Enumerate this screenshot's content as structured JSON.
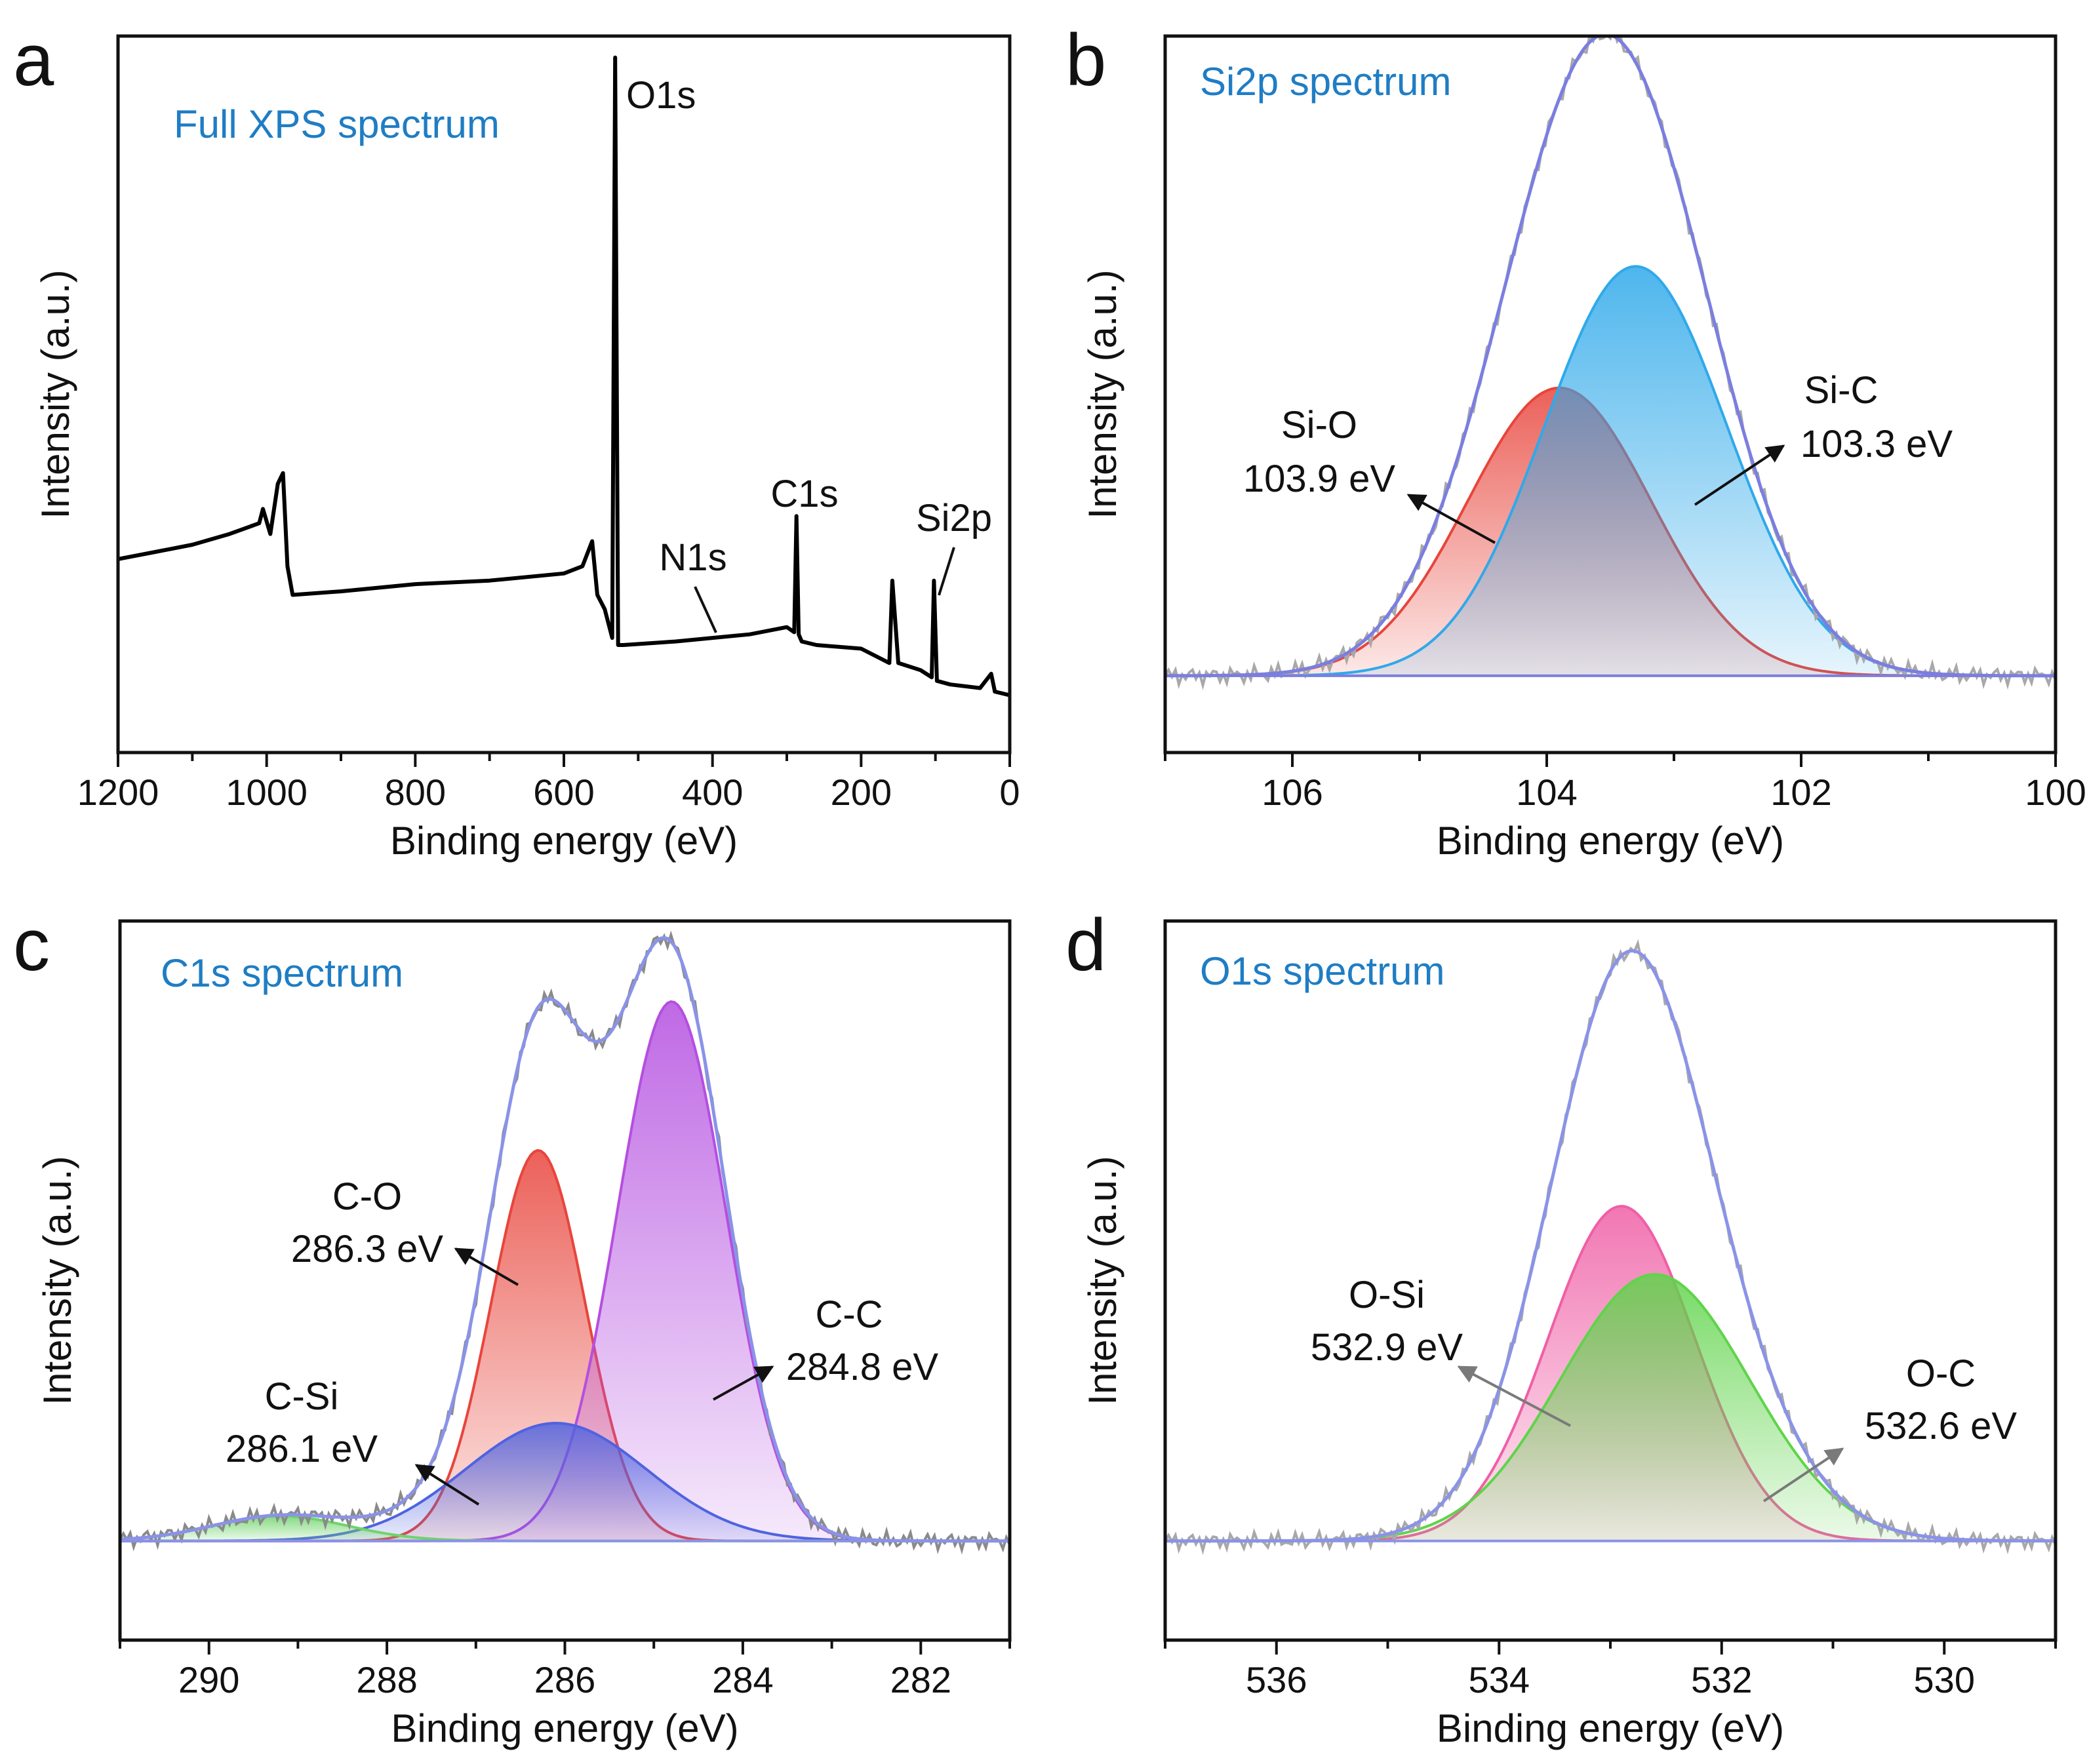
{
  "figure": {
    "panels": [
      {
        "letter": "a"
      },
      {
        "letter": "b"
      },
      {
        "letter": "c"
      },
      {
        "letter": "d"
      }
    ]
  },
  "chart_data": [
    {
      "type": "line",
      "panel": "a",
      "title": "Full XPS spectrum",
      "xlabel": "Binding energy (eV)",
      "ylabel": "Intensity (a.u.)",
      "xlim": [
        1200,
        0
      ],
      "ylim": [
        0,
        100
      ],
      "x_reversed": true,
      "xticks": [
        1200,
        1000,
        800,
        600,
        400,
        200,
        0
      ],
      "xtick_labels": [
        "1200",
        "1000",
        "800",
        "600",
        "400",
        "200",
        "0"
      ],
      "series": [
        {
          "name": "Survey",
          "color": "#000000",
          "x": [
            1200,
            1150,
            1100,
            1050,
            1010,
            1005,
            995,
            985,
            978,
            972,
            965,
            900,
            800,
            700,
            600,
            575,
            562,
            555,
            545,
            535,
            531,
            527,
            520,
            450,
            400,
            350,
            300,
            290,
            287,
            284,
            280,
            260,
            200,
            162,
            158,
            150,
            120,
            105,
            102,
            98,
            80,
            40,
            25,
            20,
            0
          ],
          "y": [
            27,
            28,
            29,
            30.5,
            32,
            34,
            30.5,
            37.5,
            39,
            26,
            22,
            22.5,
            23.5,
            24,
            25,
            26,
            29.5,
            22,
            20,
            16,
            97,
            15,
            15,
            15.5,
            16,
            16.5,
            17.5,
            16.8,
            33,
            16.5,
            15.5,
            15,
            14.5,
            12.5,
            24,
            12.5,
            11.5,
            10.5,
            24,
            10,
            9.5,
            9,
            11,
            8.5,
            8
          ]
        }
      ],
      "annotations": [
        {
          "text": "O1s",
          "x": 531,
          "y": 97
        },
        {
          "text": "N1s",
          "x": 399,
          "y": 16
        },
        {
          "text": "C1s",
          "x": 285,
          "y": 33
        },
        {
          "text": "Si2p",
          "x": 102,
          "y": 24
        }
      ]
    },
    {
      "type": "area",
      "panel": "b",
      "title": "Si2p spectrum",
      "xlabel": "Binding energy (eV)",
      "ylabel": "Intensity (a.u.)",
      "xlim": [
        107,
        100
      ],
      "ylim": [
        -12,
        100
      ],
      "x_reversed": true,
      "xticks": [
        106,
        104,
        102,
        100
      ],
      "xtick_labels": [
        "106",
        "104",
        "102",
        "100"
      ],
      "series": [
        {
          "name": "Si-O",
          "role": "component",
          "center": 103.9,
          "height": 45,
          "fwhm": 1.7,
          "color": "#e8453c"
        },
        {
          "name": "Si-C",
          "role": "component",
          "center": 103.3,
          "height": 64,
          "fwhm": 1.7,
          "color": "#2fa9ea"
        },
        {
          "name": "Envelope",
          "role": "envelope",
          "color": "#7b7ee0"
        },
        {
          "name": "Raw",
          "role": "raw",
          "color": "#a8a8a8"
        }
      ],
      "annotations": [
        {
          "text": "Si-O",
          "sub": "103.9 eV"
        },
        {
          "text": "Si-C",
          "sub": "103.3 eV"
        }
      ]
    },
    {
      "type": "area",
      "panel": "c",
      "title": "C1s spectrum",
      "xlabel": "Binding energy (eV)",
      "ylabel": "Intensity (a.u.)",
      "xlim": [
        291,
        281
      ],
      "ylim": [
        -16,
        100
      ],
      "x_reversed": true,
      "xticks": [
        290,
        288,
        286,
        284,
        282
      ],
      "xtick_labels": [
        "290",
        "288",
        "286",
        "284",
        "282"
      ],
      "series": [
        {
          "name": "C-O",
          "role": "component",
          "center": 286.3,
          "height": 63,
          "fwhm": 1.25,
          "color": "#e8453c"
        },
        {
          "name": "C-C",
          "role": "component",
          "center": 284.8,
          "height": 87,
          "fwhm": 1.45,
          "color": "#b44fe0"
        },
        {
          "name": "C-Si",
          "role": "component",
          "center": 286.1,
          "height": 19,
          "fwhm": 2.4,
          "color": "#4f63e0"
        },
        {
          "name": "Shake-up",
          "role": "component",
          "center": 289.2,
          "height": 4,
          "fwhm": 1.8,
          "color": "#6fd46a"
        },
        {
          "name": "Envelope",
          "role": "envelope",
          "color": "#8a93e8"
        },
        {
          "name": "Raw",
          "role": "raw",
          "color": "#8a8a8a"
        }
      ],
      "annotations": [
        {
          "text": "C-O",
          "sub": "286.3 eV"
        },
        {
          "text": "C-C",
          "sub": "284.8 eV"
        },
        {
          "text": "C-Si",
          "sub": "286.1 eV"
        }
      ]
    },
    {
      "type": "area",
      "panel": "d",
      "title": "O1s spectrum",
      "xlabel": "Binding energy (eV)",
      "ylabel": "Intensity (a.u.)",
      "xlim": [
        537,
        529
      ],
      "ylim": [
        -16,
        100
      ],
      "x_reversed": true,
      "xticks": [
        536,
        534,
        532,
        530
      ],
      "xtick_labels": [
        "536",
        "534",
        "532",
        "530"
      ],
      "series": [
        {
          "name": "O-Si",
          "role": "component",
          "center": 532.9,
          "height": 54,
          "fwhm": 1.55,
          "color": "#ef5fa6"
        },
        {
          "name": "O-C",
          "role": "component",
          "center": 532.6,
          "height": 43,
          "fwhm": 2.0,
          "color": "#5fd44a"
        },
        {
          "name": "Envelope",
          "role": "envelope",
          "color": "#8a93e8"
        },
        {
          "name": "Raw",
          "role": "raw",
          "color": "#a8a8a8"
        }
      ],
      "annotations": [
        {
          "text": "O-Si",
          "sub": "532.9 eV"
        },
        {
          "text": "O-C",
          "sub": "532.6 eV"
        }
      ]
    }
  ]
}
